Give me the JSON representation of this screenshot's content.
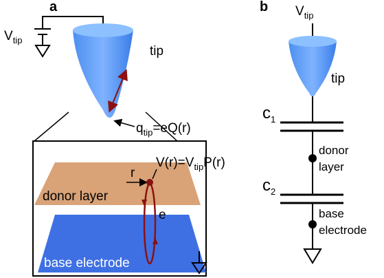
{
  "panel_a": {
    "label": "a",
    "battery_label": {
      "main": "V",
      "sub": "tip"
    },
    "tip_label": "tip",
    "charge_label": {
      "main": "q",
      "sub": "tip",
      "rest": "=eQ(r)"
    },
    "potential_label": {
      "main": "V(r)=V",
      "sub": "tip",
      "rest": "P(r)"
    },
    "radius_label": "r",
    "donor_layer": "donor layer",
    "electron_label": "e",
    "base_electrode": "base electrode"
  },
  "panel_b": {
    "label": "b",
    "source_label": {
      "main": "V",
      "sub": "tip"
    },
    "tip_label": "tip",
    "c1": {
      "main": "c",
      "sub": "1"
    },
    "donor_layer": [
      "donor",
      "layer"
    ],
    "c2": {
      "main": "c",
      "sub": "2"
    },
    "base_electrode": [
      "base",
      "electrode"
    ]
  }
}
